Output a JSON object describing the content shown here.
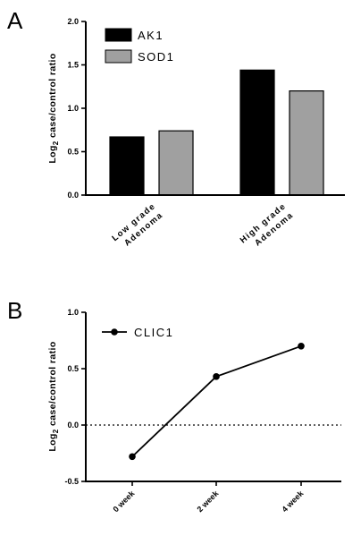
{
  "panels": {
    "a": "A",
    "b": "B"
  },
  "chart_data": [
    {
      "type": "bar",
      "panel": "A",
      "ylabel_main": "Log",
      "ylabel_sub": "2",
      "ylabel_rest": " case/control ratio",
      "ylim": [
        0,
        2.0
      ],
      "yticks": [
        "0.0",
        "0.5",
        "1.0",
        "1.5",
        "2.0"
      ],
      "categories": [
        {
          "line1": "Low grade",
          "line2": "Adenoma"
        },
        {
          "line1": "High grade",
          "line2": "Adenoma"
        }
      ],
      "series": [
        {
          "name": "AK1",
          "color": "#000000",
          "values": [
            0.67,
            1.44
          ]
        },
        {
          "name": "SOD1",
          "color": "#a0a0a0",
          "values": [
            0.74,
            1.2
          ]
        }
      ],
      "legend_position": "top-left",
      "grid": false
    },
    {
      "type": "line",
      "panel": "B",
      "ylabel_main": "Log",
      "ylabel_sub": "2",
      "ylabel_rest": " case/control ratio",
      "ylim": [
        -0.5,
        1.0
      ],
      "yticks": [
        "-0.5",
        "0.0",
        "0.5",
        "1.0"
      ],
      "x": [
        "0 week",
        "2 week",
        "4 week"
      ],
      "series": [
        {
          "name": "CLIC1",
          "color": "#000000",
          "values": [
            -0.28,
            0.43,
            0.7
          ]
        }
      ],
      "reference_line": 0.0,
      "legend_position": "top-left",
      "grid": false
    }
  ]
}
